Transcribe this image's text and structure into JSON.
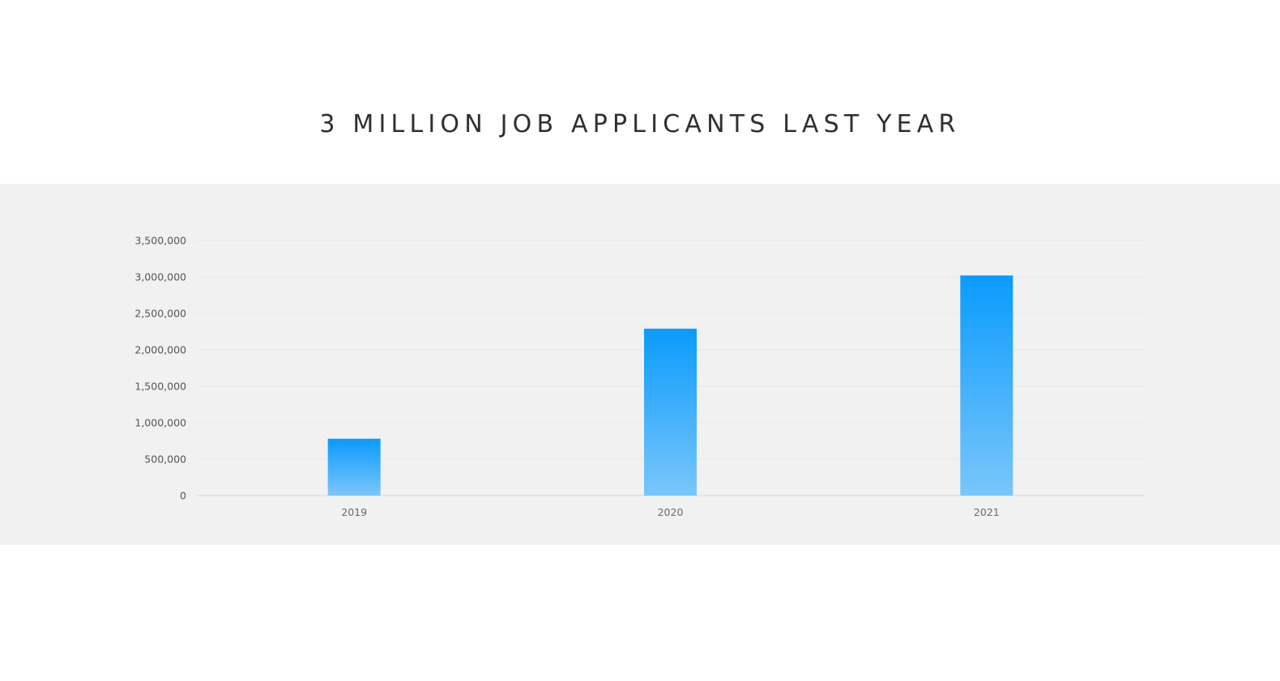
{
  "headline": "3 MILLION JOB APPLICANTS LAST YEAR",
  "colors": {
    "band_background": "#f1f1f1",
    "bar_top": "#0a9bfd",
    "bar_bottom": "#7ac6fa",
    "gridline": "#e6e6e6",
    "axis_line": "#d8d8d8"
  },
  "chart_data": {
    "type": "bar",
    "title": "3 MILLION JOB APPLICANTS LAST YEAR",
    "xlabel": "",
    "ylabel": "",
    "categories": [
      "2019",
      "2020",
      "2021"
    ],
    "values": [
      780000,
      2290000,
      3020000
    ],
    "ylim": [
      0,
      3500000
    ],
    "yticks": [
      0,
      500000,
      1000000,
      1500000,
      2000000,
      2500000,
      3000000,
      3500000
    ],
    "ytick_labels": [
      "0",
      "500,000",
      "1,000,000",
      "1,500,000",
      "2,000,000",
      "2,500,000",
      "3,000,000",
      "3,500,000"
    ],
    "grid": true,
    "legend": "none"
  }
}
